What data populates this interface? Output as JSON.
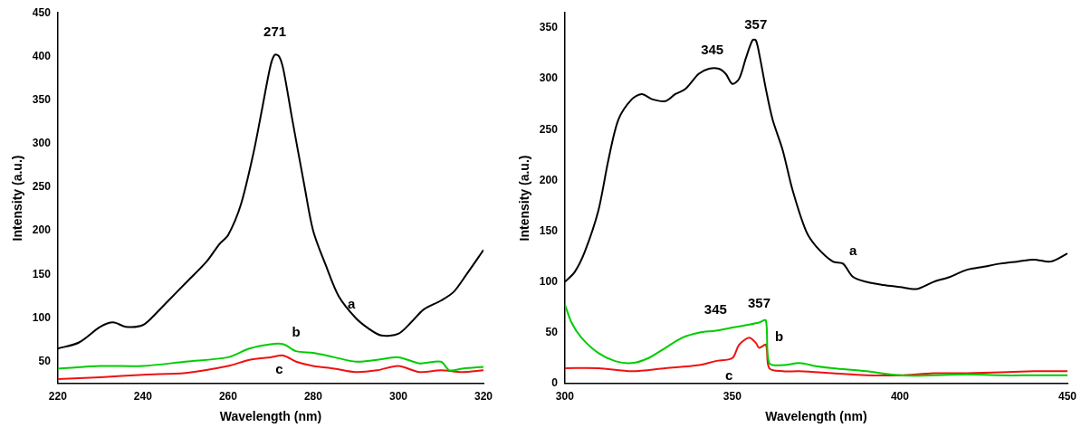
{
  "chart_data": [
    {
      "type": "line",
      "x_label": "Wavelength (nm)",
      "y_label": "Intensity (a.u.)",
      "xlim": [
        220,
        320
      ],
      "xticks": [
        220,
        240,
        260,
        280,
        300,
        320
      ],
      "ylim": [
        25,
        450
      ],
      "yticks": [
        50,
        100,
        150,
        200,
        250,
        300,
        350,
        400,
        450
      ],
      "grid": false,
      "series": [
        {
          "name": "a",
          "color": "#000000",
          "x": [
            220,
            225,
            230,
            233,
            236,
            240,
            243,
            246,
            250,
            255,
            258,
            260,
            263,
            266,
            268,
            270,
            271,
            272,
            273,
            275,
            278,
            280,
            283,
            286,
            290,
            293,
            296,
            300,
            303,
            306,
            310,
            313,
            316,
            320
          ],
          "values": [
            65,
            72,
            90,
            95,
            90,
            92,
            105,
            120,
            140,
            165,
            185,
            195,
            230,
            290,
            340,
            390,
            402,
            400,
            385,
            330,
            250,
            200,
            160,
            125,
            100,
            88,
            80,
            82,
            95,
            110,
            120,
            130,
            150,
            178
          ]
        },
        {
          "name": "b",
          "color": "#00cc00",
          "x": [
            220,
            230,
            240,
            250,
            260,
            265,
            270,
            273,
            276,
            280,
            285,
            290,
            295,
            300,
            305,
            310,
            312,
            315,
            320
          ],
          "values": [
            42,
            45,
            45,
            50,
            55,
            65,
            70,
            70,
            62,
            60,
            55,
            50,
            52,
            55,
            48,
            50,
            40,
            42,
            44
          ]
        },
        {
          "name": "c",
          "color": "#ee1111",
          "x": [
            220,
            230,
            240,
            250,
            260,
            265,
            270,
            273,
            276,
            280,
            285,
            290,
            295,
            300,
            305,
            310,
            315,
            320
          ],
          "values": [
            30,
            32,
            35,
            37,
            45,
            52,
            55,
            57,
            50,
            45,
            42,
            38,
            40,
            45,
            38,
            40,
            38,
            40
          ]
        }
      ],
      "annotations": [
        {
          "text": "271",
          "x": 271,
          "y": 428
        },
        {
          "text": "a",
          "x": 289,
          "y": 115
        },
        {
          "text": "b",
          "x": 276,
          "y": 83
        },
        {
          "text": "c",
          "x": 272,
          "y": 40
        }
      ]
    },
    {
      "type": "line",
      "x_label": "Wavelength (nm)",
      "y_label": "Intensity (a.u.)",
      "xlim": [
        300,
        450
      ],
      "xticks": [
        300,
        350,
        400,
        450
      ],
      "ylim": [
        0,
        365
      ],
      "yticks": [
        0,
        50,
        100,
        150,
        200,
        250,
        300,
        350
      ],
      "grid": false,
      "series": [
        {
          "name": "a",
          "color": "#000000",
          "x": [
            300,
            303,
            306,
            310,
            313,
            316,
            320,
            323,
            326,
            330,
            333,
            336,
            340,
            343,
            346,
            348,
            350,
            352,
            354,
            356,
            357,
            358,
            360,
            362,
            365,
            368,
            372,
            375,
            380,
            383,
            386,
            390,
            395,
            400,
            405,
            410,
            415,
            420,
            425,
            430,
            435,
            440,
            445,
            450
          ],
          "values": [
            100,
            110,
            130,
            170,
            220,
            260,
            280,
            285,
            280,
            278,
            285,
            290,
            305,
            310,
            310,
            305,
            295,
            300,
            320,
            338,
            338,
            325,
            290,
            260,
            230,
            190,
            150,
            135,
            120,
            118,
            105,
            100,
            97,
            95,
            93,
            100,
            105,
            112,
            115,
            118,
            120,
            122,
            120,
            128
          ]
        },
        {
          "name": "b",
          "color": "#00cc00",
          "x": [
            300,
            302,
            305,
            310,
            315,
            320,
            325,
            330,
            335,
            340,
            345,
            350,
            355,
            358,
            360,
            361,
            365,
            370,
            375,
            380,
            390,
            400,
            410,
            420,
            430,
            440,
            450
          ],
          "values": [
            78,
            60,
            45,
            30,
            22,
            20,
            25,
            35,
            45,
            50,
            52,
            55,
            58,
            60,
            62,
            20,
            18,
            20,
            17,
            15,
            12,
            8,
            8,
            9,
            8,
            8,
            8
          ]
        },
        {
          "name": "c",
          "color": "#ee1111",
          "x": [
            300,
            310,
            320,
            330,
            340,
            345,
            350,
            352,
            355,
            357,
            358,
            360,
            361,
            365,
            370,
            380,
            390,
            400,
            410,
            420,
            440,
            450
          ],
          "values": [
            15,
            15,
            12,
            15,
            18,
            22,
            25,
            38,
            45,
            40,
            35,
            38,
            15,
            12,
            12,
            10,
            8,
            8,
            10,
            10,
            12,
            12
          ]
        }
      ],
      "annotations": [
        {
          "text": "345",
          "x": 344,
          "y": 328
        },
        {
          "text": "357",
          "x": 357,
          "y": 353
        },
        {
          "text": "a",
          "x": 386,
          "y": 130
        },
        {
          "text": "345",
          "x": 345,
          "y": 72
        },
        {
          "text": "357",
          "x": 358,
          "y": 78
        },
        {
          "text": "b",
          "x": 364,
          "y": 45
        },
        {
          "text": "c",
          "x": 349,
          "y": 7
        }
      ]
    }
  ]
}
